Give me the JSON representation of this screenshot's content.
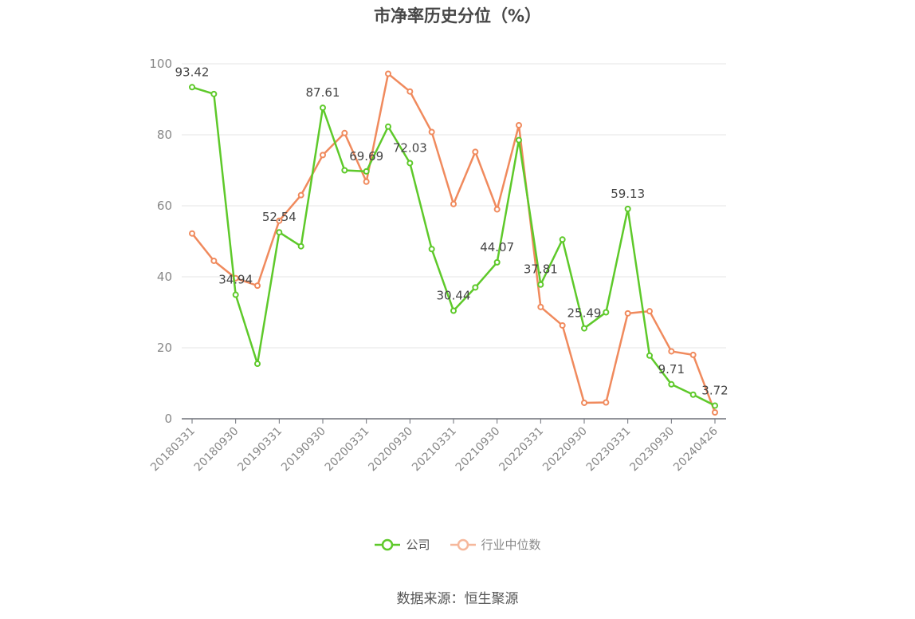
{
  "chart_data": {
    "type": "line",
    "title": "市净率历史分位（%）",
    "ylim": [
      0,
      100
    ],
    "y_ticks": [
      0,
      20,
      40,
      60,
      80,
      100
    ],
    "x_tick_labels": [
      "20180331",
      "20180930",
      "20190331",
      "20190930",
      "20200331",
      "20200930",
      "20210331",
      "20210930",
      "20220331",
      "20220930",
      "20230331",
      "20230930",
      "20240426"
    ],
    "x": [
      "20180331",
      "20180630",
      "20180930",
      "20181231",
      "20190331",
      "20190630",
      "20190930",
      "20191231",
      "20200331",
      "20200630",
      "20200930",
      "20201231",
      "20210331",
      "20210630",
      "20210930",
      "20211231",
      "20220331",
      "20220630",
      "20220930",
      "20221231",
      "20230331",
      "20230630",
      "20230930",
      "20231231",
      "20240426"
    ],
    "series": [
      {
        "name": "公司",
        "color": "#5ec92a",
        "values": [
          93.42,
          91.5,
          34.94,
          15.5,
          52.54,
          48.6,
          87.61,
          70.0,
          69.69,
          82.3,
          72.03,
          47.8,
          30.44,
          37.0,
          44.07,
          78.5,
          37.81,
          50.5,
          25.49,
          30.0,
          59.13,
          17.8,
          9.71,
          6.8,
          3.72
        ],
        "labels": {
          "0": "93.42",
          "2": "34.94",
          "4": "52.54",
          "6": "87.61",
          "8": "69.69",
          "10": "72.03",
          "12": "30.44",
          "14": "44.07",
          "16": "37.81",
          "18": "25.49",
          "20": "59.13",
          "22": "9.71",
          "24": "3.72"
        }
      },
      {
        "name": "行业中位数",
        "color": "#f08a5d",
        "values": [
          52.2,
          44.5,
          39.6,
          37.5,
          55.8,
          63.0,
          74.3,
          80.5,
          66.8,
          97.2,
          92.2,
          80.8,
          60.5,
          75.2,
          59.0,
          82.7,
          31.5,
          26.3,
          4.5,
          4.6,
          29.7,
          30.3,
          19.0,
          18.0,
          1.8
        ]
      }
    ],
    "legend_position": "bottom-center",
    "grid": true
  },
  "source_text": "数据来源：恒生聚源"
}
